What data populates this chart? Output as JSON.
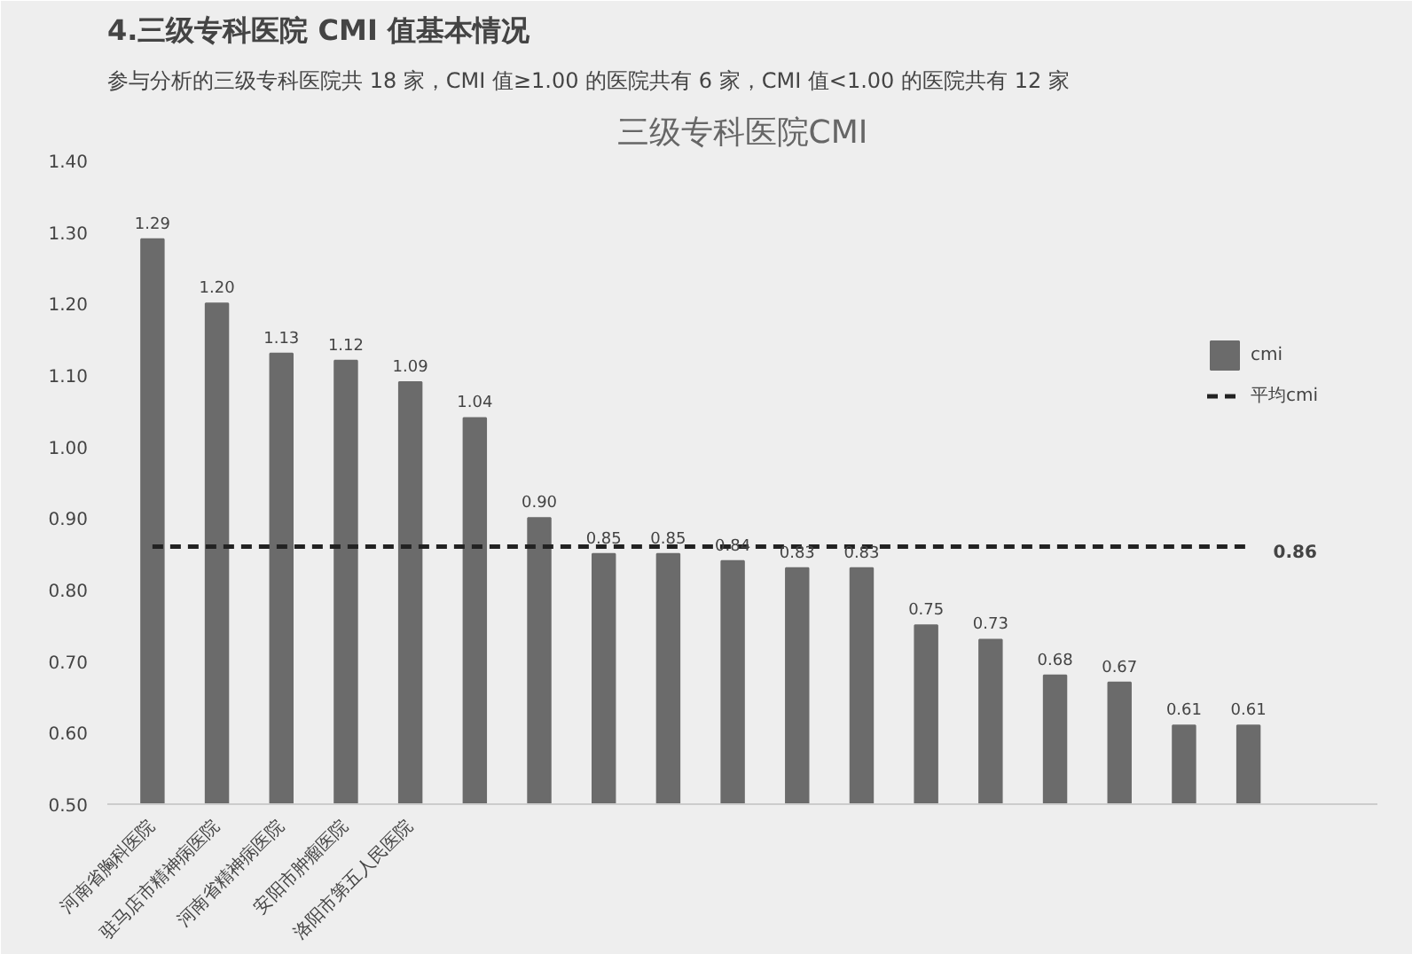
{
  "chart_data": {
    "type": "bar",
    "title": "三级专科医院CMI",
    "annotations": [
      "4.三级专科医院 CMI 值基本情况",
      "参与分析的三级专科医院共 18 家，CMI 值≥1.00 的医院共有 6 家，CMI 值<1.00 的医院共有 12 家"
    ],
    "categories": [
      "河南省胸科医院",
      "驻马店市精神病医院",
      "河南省精神病医院",
      "安阳市肿瘤医院",
      "洛阳市第五人民医院",
      null,
      null,
      null,
      null,
      null,
      null,
      null,
      null,
      null,
      null,
      null,
      null,
      null
    ],
    "series": [
      {
        "name": "cmi",
        "color": "#6b6b6b",
        "values": [
          1.29,
          1.2,
          1.13,
          1.12,
          1.09,
          1.04,
          0.9,
          0.85,
          0.85,
          0.84,
          0.83,
          0.83,
          0.75,
          0.73,
          0.68,
          0.67,
          0.61,
          0.61
        ],
        "value_labels": [
          "1.29",
          "1.20",
          "1.13",
          "1.12",
          "1.09",
          "1.04",
          "0.90",
          "0.85",
          "0.85",
          "0.84",
          "0.83",
          "0.83",
          "0.75",
          "0.73",
          "0.68",
          "0.67",
          "0.61",
          "0.61"
        ]
      },
      {
        "name": "平均cmi",
        "type": "line",
        "color": "#222222",
        "line_style": "dashed",
        "values": [
          0.86,
          0.86,
          0.86,
          0.86,
          0.86,
          0.86,
          0.86,
          0.86,
          0.86,
          0.86,
          0.86,
          0.86,
          0.86,
          0.86,
          0.86,
          0.86,
          0.86,
          0.86
        ],
        "value_labels": [
          null,
          null,
          null,
          null,
          null,
          null,
          null,
          null,
          null,
          null,
          null,
          null,
          null,
          null,
          null,
          null,
          null,
          "0.86"
        ]
      }
    ],
    "ylim": [
      0.5,
      1.4
    ],
    "yticks": [
      {
        "value": 0.5,
        "label": "0.50"
      },
      {
        "value": 0.6,
        "label": "0.60"
      },
      {
        "value": 0.7,
        "label": "0.70"
      },
      {
        "value": 0.8,
        "label": "0.80"
      },
      {
        "value": 0.9,
        "label": "0.90"
      },
      {
        "value": 1.0,
        "label": "1.00"
      },
      {
        "value": 1.1,
        "label": "1.10"
      },
      {
        "value": 1.2,
        "label": "1.20"
      },
      {
        "value": 1.3,
        "label": "1.30"
      },
      {
        "value": 1.4,
        "label": "1.40"
      }
    ],
    "grid": false,
    "legend": "right"
  }
}
